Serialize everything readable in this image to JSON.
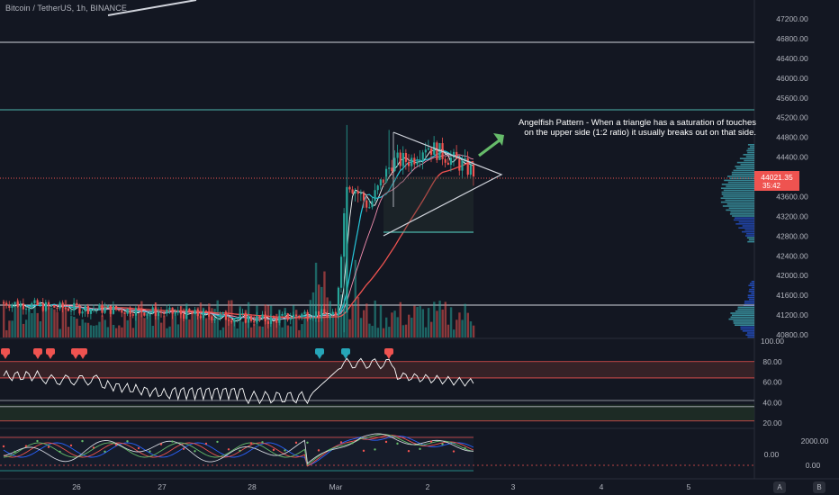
{
  "header": {
    "symbol": "Bitcoin / TetherUS, 1h, BINANCE"
  },
  "annotation": {
    "line1": "Angelfish Pattern - When a triangle has a saturation of touches",
    "line2": "on the upper side (1:2 ratio) it usually breaks out on that side."
  },
  "price_axis": {
    "ticks": [
      "47200.00",
      "46800.00",
      "46400.00",
      "46000.00",
      "45600.00",
      "45200.00",
      "44800.00",
      "44400.00",
      "43600.00",
      "43200.00",
      "42800.00",
      "42400.00",
      "42000.00",
      "41600.00",
      "41200.00",
      "40800.00"
    ],
    "current_price": "44021.35",
    "countdown": "35:42"
  },
  "rsi_axis": {
    "ticks": [
      "100.00",
      "80.00",
      "60.00",
      "40.00",
      "20.00"
    ]
  },
  "osc_axis": {
    "ticks": [
      "2000.00",
      "0.00",
      "0.00"
    ]
  },
  "time_axis": {
    "labels": [
      "26",
      "27",
      "28",
      "Mar",
      "2",
      "3",
      "4",
      "5"
    ]
  },
  "controls": {
    "auto_label": "A",
    "log_label": "B"
  },
  "colors": {
    "background": "#131722",
    "up": "#26a69a",
    "down": "#ef5350",
    "price_line": "#ef5350",
    "level_line": "#d1d4dc",
    "teal_line": "#4db6ac",
    "arrow": "#66bb6a"
  },
  "chart_data": {
    "type": "candlestick",
    "symbol": "BTCUSDT",
    "timeframe": "1h",
    "exchange": "BINANCE",
    "price_range": [
      40800,
      47200
    ],
    "current_price": 44021.35,
    "horizontal_levels": [
      46800,
      45360,
      41480
    ],
    "triangle": {
      "apex_price": 44020,
      "top_left_price": 44950,
      "bottom_left_price": 42880
    },
    "rsi_range": [
      20,
      100
    ],
    "rsi_bands": [
      80,
      64,
      42,
      36
    ]
  }
}
